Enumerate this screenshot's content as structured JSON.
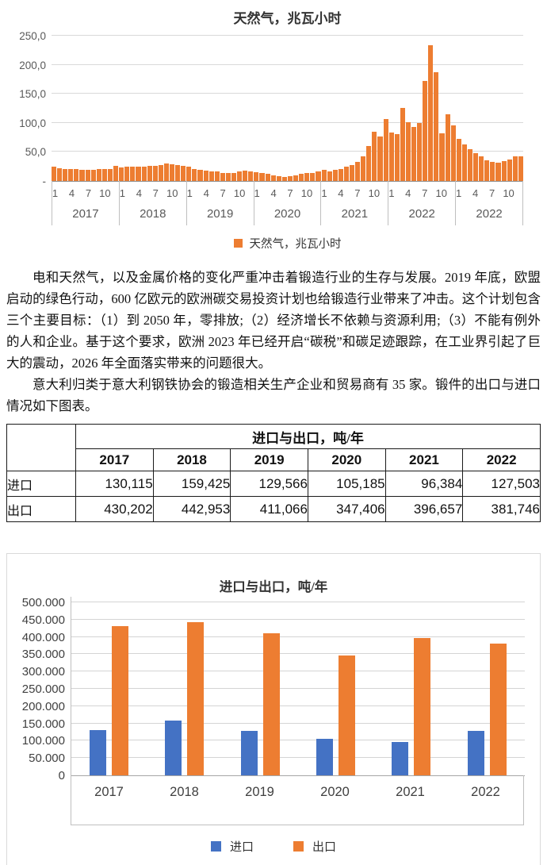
{
  "chart_data": [
    {
      "type": "bar",
      "title": "天然气，兆瓦小时",
      "legend": [
        "天然气，兆瓦小时"
      ],
      "bar_color": "#ED7D31",
      "ylim": [
        0,
        250
      ],
      "y_tick_labels": [
        "250,0",
        "200,0",
        "150,0",
        "100,0",
        "50,0",
        "-"
      ],
      "x_month_ticks": [
        "1",
        "4",
        "7",
        "10"
      ],
      "year_groups": [
        "2017",
        "2018",
        "2019",
        "2020",
        "2021",
        "2022",
        "2022"
      ],
      "values_monthly": [
        25,
        22,
        21,
        20,
        20,
        19,
        19,
        19,
        20,
        20,
        21,
        26,
        23,
        24,
        24,
        25,
        25,
        26,
        26,
        28,
        30,
        29,
        27,
        26,
        24,
        21,
        19,
        18,
        17,
        16,
        14,
        13,
        14,
        17,
        18,
        16,
        15,
        13,
        12,
        10,
        8,
        7,
        8,
        9,
        12,
        13,
        14,
        16,
        19,
        17,
        19,
        21,
        24,
        28,
        33,
        42,
        60,
        85,
        76,
        107,
        84,
        81,
        126,
        101,
        93,
        100,
        172,
        233,
        187,
        82,
        115,
        96,
        72,
        63,
        55,
        48,
        43,
        36,
        33,
        31,
        34,
        37,
        42,
        43
      ]
    },
    {
      "type": "bar",
      "title": "进口与出口，吨/年",
      "categories": [
        "2017",
        "2018",
        "2019",
        "2020",
        "2021",
        "2022"
      ],
      "series": [
        {
          "name": "进口",
          "color": "#4472C4",
          "values": [
            130115,
            159425,
            129566,
            105185,
            96384,
            127503
          ]
        },
        {
          "name": "出口",
          "color": "#ED7D31",
          "values": [
            430202,
            442953,
            411066,
            347406,
            396657,
            381746
          ]
        }
      ],
      "ylim": [
        0,
        500000
      ],
      "y_tick_labels": [
        "500.000",
        "450.000",
        "400.000",
        "350.000",
        "300.000",
        "250.000",
        "200.000",
        "150.000",
        "100.000",
        "50.000",
        "0"
      ],
      "legend_position": "bottom",
      "grid": true
    }
  ],
  "paragraphs": {
    "p1": "电和天然气，以及金属价格的变化严重冲击着锻造行业的生存与发展。2019 年底，欧盟启动的绿色行动，600 亿欧元的欧洲碳交易投资计划也给锻造行业带来了冲击。这个计划包含三个主要目标：（1）到 2050 年，零排放;（2）经济增长不依赖与资源利用;（3）不能有例外的人和企业。基于这个要求，欧洲 2023 年已经开启“碳税”和碳足迹跟踪，在工业界引起了巨大的震动，2026 年全面落实带来的问题很大。",
    "p2": "意大利归类于意大利钢铁协会的锻造相关生产企业和贸易商有 35 家。锻件的出口与进口情况如下图表。"
  },
  "table": {
    "span_header": "进口与出口，吨/年",
    "years": [
      "2017",
      "2018",
      "2019",
      "2020",
      "2021",
      "2022"
    ],
    "rows": [
      {
        "label": "进口",
        "values": [
          "130,115",
          "159,425",
          "129,566",
          "105,185",
          "96,384",
          "127,503"
        ]
      },
      {
        "label": "出口",
        "values": [
          "430,202",
          "442,953",
          "411,066",
          "347,406",
          "396,657",
          "381,746"
        ]
      }
    ]
  }
}
